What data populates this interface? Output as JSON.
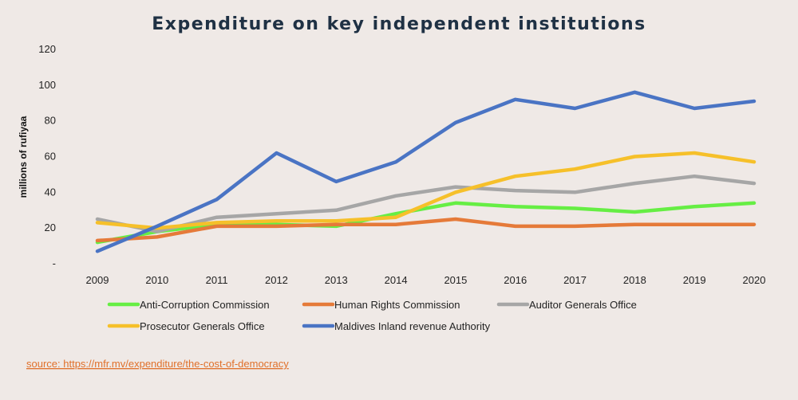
{
  "chart_data": {
    "type": "line",
    "title": "Expenditure on key independent institutions",
    "ylabel": "millions of rufiyaa",
    "xlabel": "",
    "ylim": [
      0,
      120
    ],
    "y_ticks": [
      {
        "value": 0,
        "label": "-"
      },
      {
        "value": 20,
        "label": "20"
      },
      {
        "value": 40,
        "label": "40"
      },
      {
        "value": 60,
        "label": "60"
      },
      {
        "value": 80,
        "label": "80"
      },
      {
        "value": 100,
        "label": "100"
      },
      {
        "value": 120,
        "label": "120"
      }
    ],
    "categories": [
      "2009",
      "2010",
      "2011",
      "2012",
      "2013",
      "2014",
      "2015",
      "2016",
      "2017",
      "2018",
      "2019",
      "2020"
    ],
    "grid": false,
    "legend_position": "bottom",
    "series": [
      {
        "name": "Anti-Corruption Commission",
        "color": "#66ee44",
        "values": [
          12,
          18,
          22,
          22,
          21,
          28,
          34,
          32,
          31,
          29,
          32,
          34
        ]
      },
      {
        "name": "Human Rights Commission",
        "color": "#e57a39",
        "values": [
          13,
          15,
          21,
          21,
          22,
          22,
          25,
          21,
          21,
          22,
          22,
          22
        ]
      },
      {
        "name": "Auditor Generals Office",
        "color": "#a6a6a6",
        "values": [
          25,
          18,
          26,
          28,
          30,
          38,
          43,
          41,
          40,
          45,
          49,
          45
        ]
      },
      {
        "name": "Prosecutor Generals Office",
        "color": "#f6c02a",
        "values": [
          23,
          20,
          23,
          24,
          24,
          26,
          40,
          49,
          53,
          60,
          62,
          57
        ]
      },
      {
        "name": "Maldives Inland revenue Authority",
        "color": "#4a74c4",
        "values": [
          7,
          21,
          36,
          62,
          46,
          57,
          79,
          92,
          87,
          96,
          87,
          91
        ]
      }
    ]
  },
  "source_text": "source: https://mfr.mv/expenditure/the-cost-of-democracy"
}
